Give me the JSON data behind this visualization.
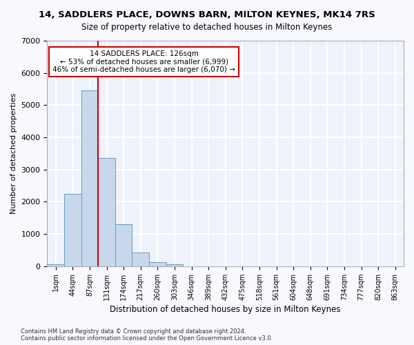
{
  "title": "14, SADDLERS PLACE, DOWNS BARN, MILTON KEYNES, MK14 7RS",
  "subtitle": "Size of property relative to detached houses in Milton Keynes",
  "xlabel": "Distribution of detached houses by size in Milton Keynes",
  "ylabel": "Number of detached properties",
  "footer1": "Contains HM Land Registry data © Crown copyright and database right 2024.",
  "footer2": "Contains public sector information licensed under the Open Government Licence v3.0.",
  "annotation_title": "14 SADDLERS PLACE: 126sqm",
  "annotation_line2": "← 53% of detached houses are smaller (6,999)",
  "annotation_line3": "46% of semi-detached houses are larger (6,070) →",
  "bar_color": "#c8d8ec",
  "bar_edge_color": "#6699bb",
  "marker_color": "#cc0000",
  "background_color": "#eef2fb",
  "grid_color": "#ffffff",
  "bins": [
    "1sqm",
    "44sqm",
    "87sqm",
    "131sqm",
    "174sqm",
    "217sqm",
    "260sqm",
    "303sqm",
    "346sqm",
    "389sqm",
    "432sqm",
    "475sqm",
    "518sqm",
    "561sqm",
    "604sqm",
    "648sqm",
    "691sqm",
    "734sqm",
    "777sqm",
    "820sqm",
    "863sqm"
  ],
  "values": [
    50,
    2250,
    5450,
    3350,
    1300,
    430,
    120,
    50,
    5,
    0,
    0,
    0,
    0,
    0,
    0,
    0,
    0,
    0,
    0,
    0,
    0
  ],
  "marker_bin_index": 3,
  "ylim": [
    0,
    7000
  ],
  "yticks": [
    0,
    1000,
    2000,
    3000,
    4000,
    5000,
    6000,
    7000
  ]
}
